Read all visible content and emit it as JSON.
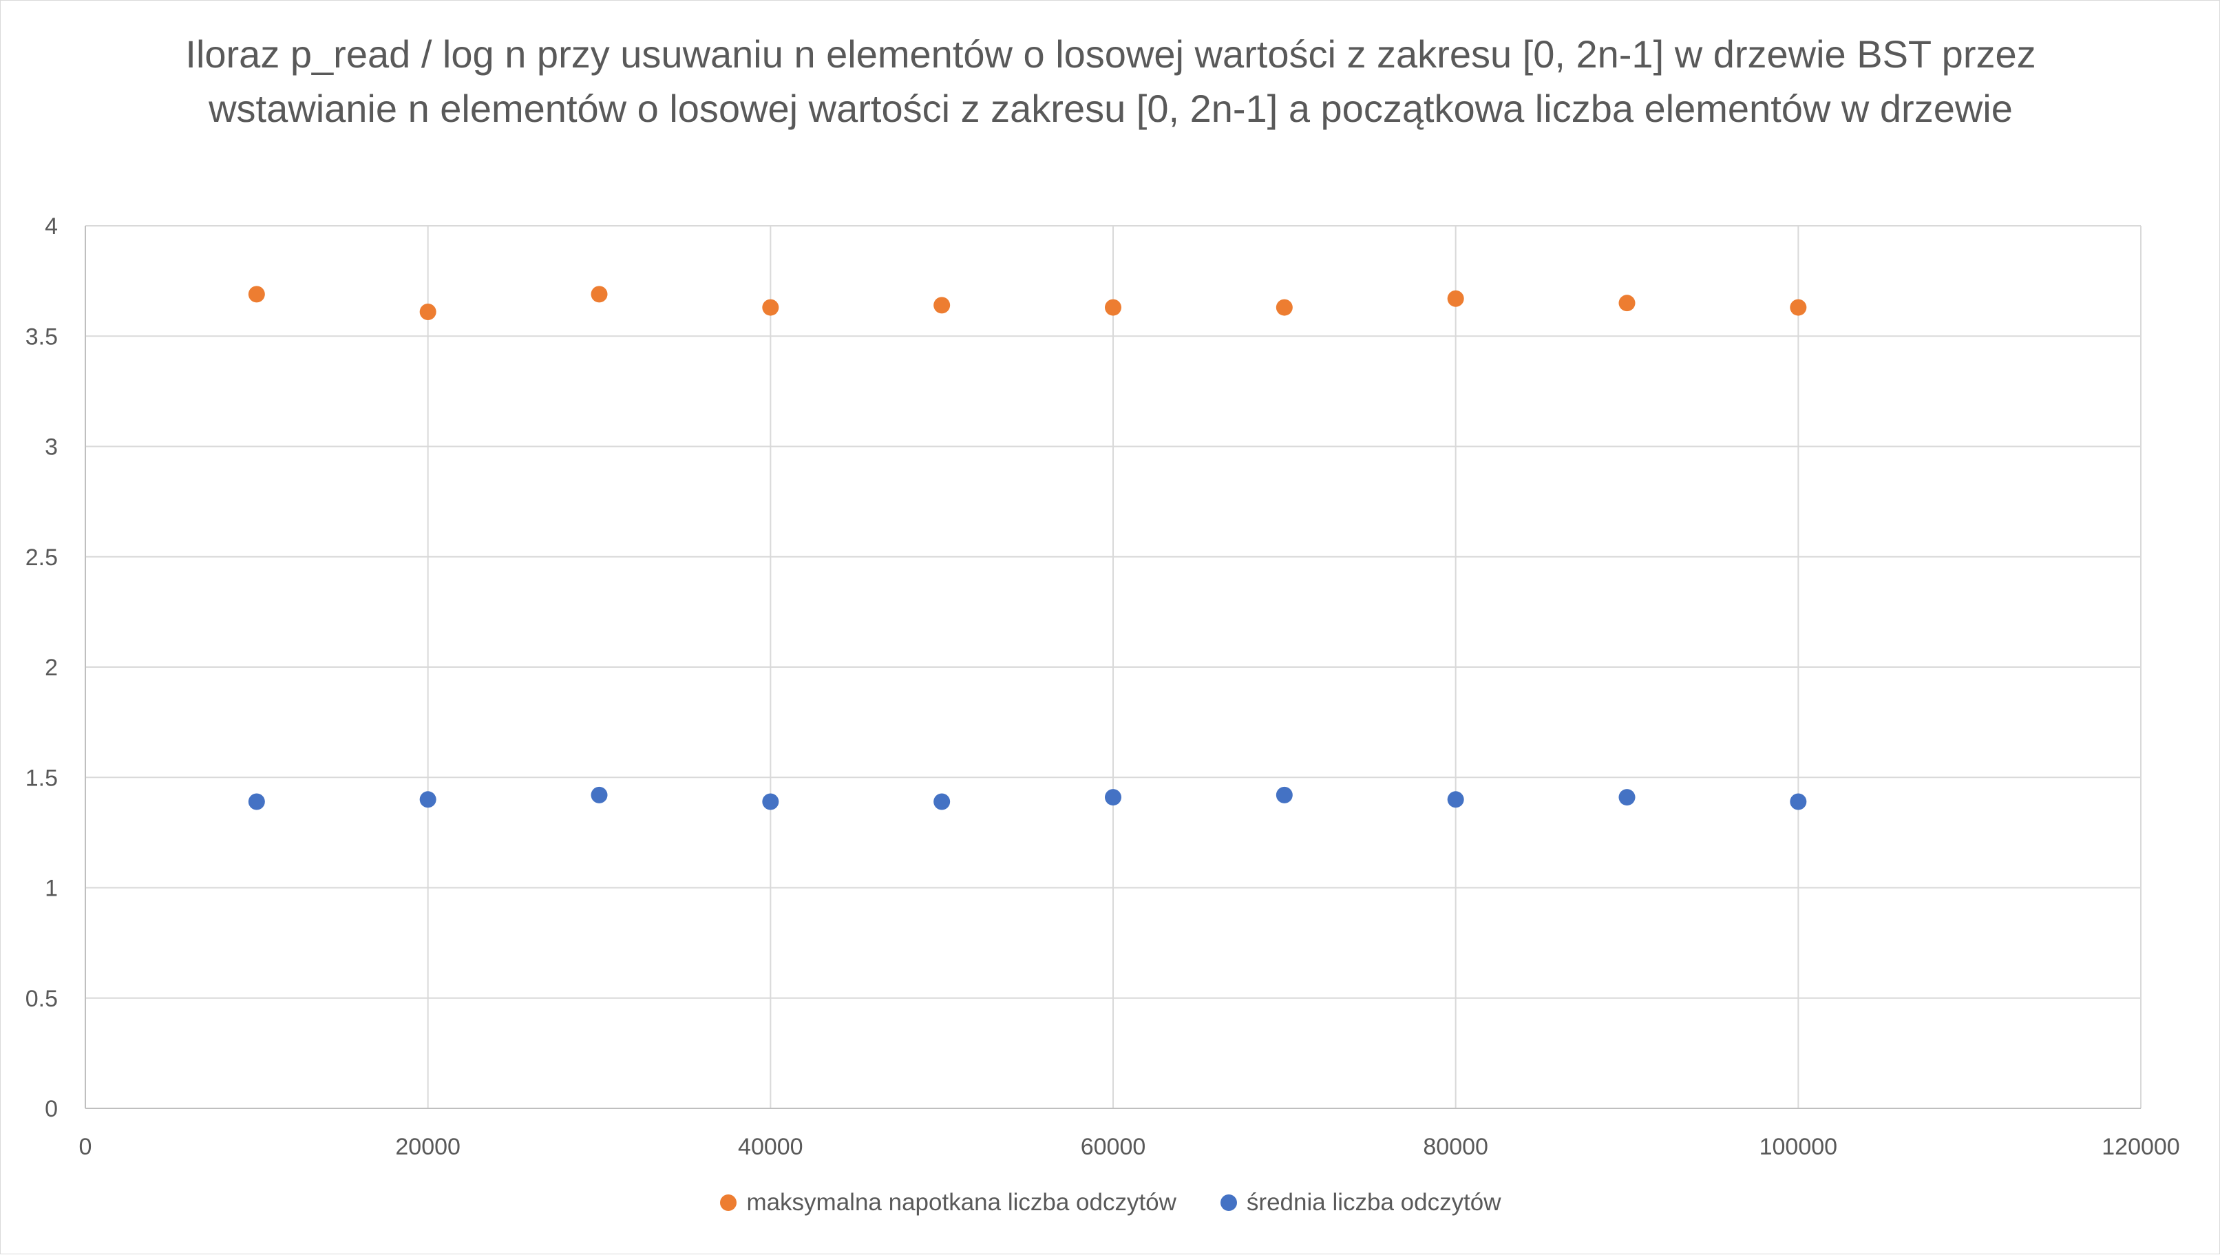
{
  "chart_data": {
    "type": "scatter",
    "title": "Iloraz p_read / log n przy usuwaniu n elementów o losowej wartości z zakresu [0, 2n-1] w drzewie BST przez wstawianie n elementów o losowej wartości z zakresu [0, 2n-1] a początkowa liczba elementów w drzewie",
    "xlabel": "",
    "ylabel": "",
    "xlim": [
      0,
      120000
    ],
    "ylim": [
      0,
      4
    ],
    "x_ticks": [
      "0",
      "20000",
      "40000",
      "60000",
      "80000",
      "100000",
      "120000"
    ],
    "y_ticks": [
      "0",
      "0.5",
      "1",
      "1.5",
      "2",
      "2.5",
      "3",
      "3.5",
      "4"
    ],
    "grid": true,
    "legend_position": "bottom",
    "series": [
      {
        "name": "maksymalna napotkana liczba odczytów",
        "color": "#ED7D31",
        "x": [
          10000,
          20000,
          30000,
          40000,
          50000,
          60000,
          70000,
          80000,
          90000,
          100000
        ],
        "y": [
          3.69,
          3.61,
          3.69,
          3.63,
          3.64,
          3.63,
          3.63,
          3.67,
          3.65,
          3.63
        ]
      },
      {
        "name": "średnia liczba odczytów",
        "color": "#4472C4",
        "x": [
          10000,
          20000,
          30000,
          40000,
          50000,
          60000,
          70000,
          80000,
          90000,
          100000
        ],
        "y": [
          1.39,
          1.4,
          1.42,
          1.39,
          1.39,
          1.41,
          1.42,
          1.4,
          1.41,
          1.39
        ]
      }
    ]
  }
}
